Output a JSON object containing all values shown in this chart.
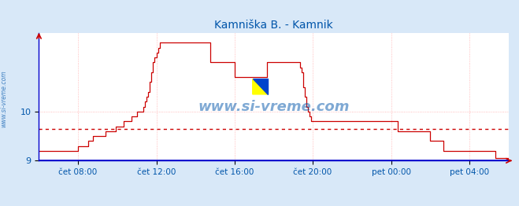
{
  "title": "Kamniška B. - Kamnik",
  "title_color": "#0055aa",
  "bg_color": "#d8e8f8",
  "plot_bg_color": "#ffffff",
  "line_color": "#cc0000",
  "avg_line_color": "#cc0000",
  "border_color": "#0000cc",
  "grid_color": "#ffaaaa",
  "ylabel_color": "#0055aa",
  "xlabel_color": "#0055aa",
  "watermark": "www.si-vreme.com",
  "watermark_color": "#0055aa",
  "legend_color": "#cc0000",
  "ylim": [
    9.0,
    11.6
  ],
  "yticks": [
    9.0,
    10.0
  ],
  "xtick_labels": [
    "čet 08:00",
    "čet 12:00",
    "čet 16:00",
    "čet 20:00",
    "pet 00:00",
    "pet 04:00"
  ],
  "xtick_positions": [
    0.083,
    0.25,
    0.417,
    0.583,
    0.75,
    0.917
  ],
  "avg_value": 9.65,
  "sidewatermark": "www.si-vreme.com",
  "temperature_data": [
    9.2,
    9.2,
    9.2,
    9.2,
    9.2,
    9.2,
    9.2,
    9.2,
    9.2,
    9.2,
    9.2,
    9.2,
    9.2,
    9.2,
    9.2,
    9.2,
    9.2,
    9.2,
    9.2,
    9.2,
    9.2,
    9.2,
    9.2,
    9.2,
    9.3,
    9.3,
    9.3,
    9.3,
    9.3,
    9.3,
    9.4,
    9.4,
    9.4,
    9.5,
    9.5,
    9.5,
    9.5,
    9.5,
    9.5,
    9.5,
    9.5,
    9.6,
    9.6,
    9.6,
    9.6,
    9.6,
    9.6,
    9.7,
    9.7,
    9.7,
    9.7,
    9.7,
    9.8,
    9.8,
    9.8,
    9.8,
    9.8,
    9.9,
    9.9,
    9.9,
    10.0,
    10.0,
    10.0,
    10.0,
    10.1,
    10.2,
    10.3,
    10.4,
    10.6,
    10.8,
    11.0,
    11.1,
    11.2,
    11.3,
    11.4,
    11.4,
    11.4,
    11.4,
    11.4,
    11.4,
    11.4,
    11.4,
    11.4,
    11.4,
    11.4,
    11.4,
    11.4,
    11.4,
    11.4,
    11.4,
    11.4,
    11.4,
    11.4,
    11.4,
    11.4,
    11.4,
    11.4,
    11.4,
    11.4,
    11.4,
    11.4,
    11.4,
    11.4,
    11.4,
    11.4,
    11.0,
    11.0,
    11.0,
    11.0,
    11.0,
    11.0,
    11.0,
    11.0,
    11.0,
    11.0,
    11.0,
    11.0,
    11.0,
    11.0,
    11.0,
    10.7,
    10.7,
    10.7,
    10.7,
    10.7,
    10.7,
    10.7,
    10.7,
    10.7,
    10.7,
    10.7,
    10.7,
    10.7,
    10.7,
    10.7,
    10.7,
    10.7,
    10.7,
    10.7,
    10.7,
    11.0,
    11.0,
    11.0,
    11.0,
    11.0,
    11.0,
    11.0,
    11.0,
    11.0,
    11.0,
    11.0,
    11.0,
    11.0,
    11.0,
    11.0,
    11.0,
    11.0,
    11.0,
    11.0,
    11.0,
    10.9,
    10.8,
    10.5,
    10.3,
    10.1,
    10.0,
    9.9,
    9.8,
    9.8,
    9.8,
    9.8,
    9.8,
    9.8,
    9.8,
    9.8,
    9.8,
    9.8,
    9.8,
    9.8,
    9.8,
    9.8,
    9.8,
    9.8,
    9.8,
    9.8,
    9.8,
    9.8,
    9.8,
    9.8,
    9.8,
    9.8,
    9.8,
    9.8,
    9.8,
    9.8,
    9.8,
    9.8,
    9.8,
    9.8,
    9.8,
    9.8,
    9.8,
    9.8,
    9.8,
    9.8,
    9.8,
    9.8,
    9.8,
    9.8,
    9.8,
    9.8,
    9.8,
    9.8,
    9.8,
    9.8,
    9.8,
    9.8,
    9.8,
    9.8,
    9.8,
    9.6,
    9.6,
    9.6,
    9.6,
    9.6,
    9.6,
    9.6,
    9.6,
    9.6,
    9.6,
    9.6,
    9.6,
    9.6,
    9.6,
    9.6,
    9.6,
    9.6,
    9.6,
    9.6,
    9.6,
    9.4,
    9.4,
    9.4,
    9.4,
    9.4,
    9.4,
    9.4,
    9.4,
    9.2,
    9.2,
    9.2,
    9.2,
    9.2,
    9.2,
    9.2,
    9.2,
    9.2,
    9.2,
    9.2,
    9.2,
    9.2,
    9.2,
    9.2,
    9.2,
    9.2,
    9.2,
    9.2,
    9.2,
    9.2,
    9.2,
    9.2,
    9.2,
    9.2,
    9.2,
    9.2,
    9.2,
    9.2,
    9.2,
    9.2,
    9.2,
    9.05,
    9.05,
    9.05,
    9.05,
    9.05,
    9.05,
    9.05,
    9.05,
    9.05
  ]
}
